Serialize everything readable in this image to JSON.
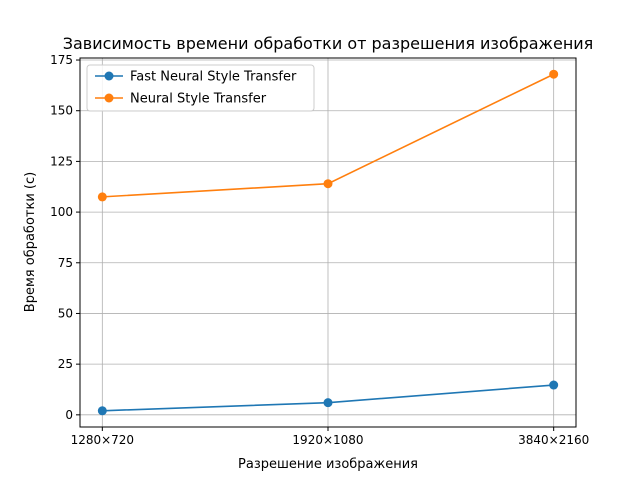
{
  "chart_data": {
    "type": "line",
    "title": "Зависимость времени обработки от разрешения изображения",
    "xlabel": "Разрешение изображения",
    "ylabel": "Время обработки (с)",
    "categories": [
      "1280×720",
      "1920×1080",
      "3840×2160"
    ],
    "ylim": [
      -6,
      176
    ],
    "yticks": [
      0,
      25,
      50,
      75,
      100,
      125,
      150,
      175
    ],
    "grid": true,
    "legend_position": "top-left",
    "series": [
      {
        "name": "Fast Neural Style Transfer",
        "color": "#1f77b4",
        "values": [
          2,
          6,
          14.7
        ]
      },
      {
        "name": "Neural Style Transfer",
        "color": "#ff7f0e",
        "values": [
          107.5,
          114,
          168
        ]
      }
    ]
  }
}
